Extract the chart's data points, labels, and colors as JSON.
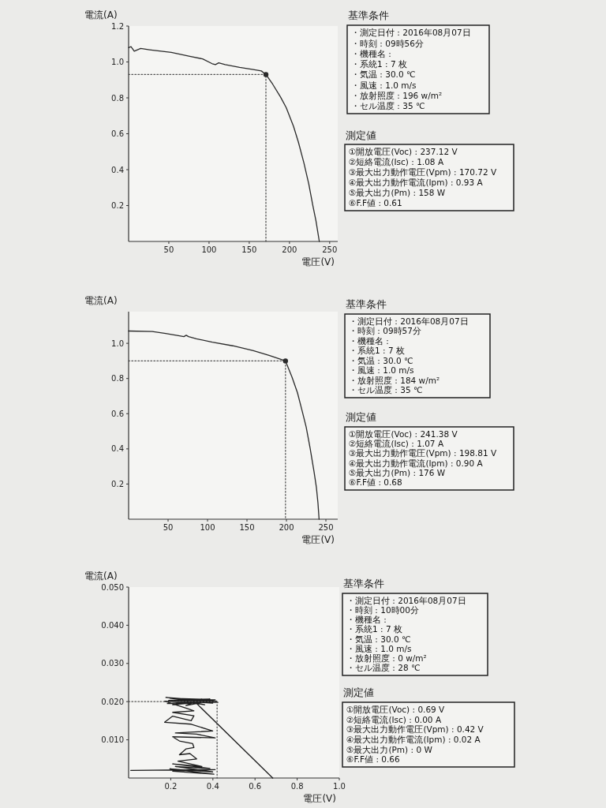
{
  "chart_data": [
    {
      "type": "line",
      "xlabel": "電圧(V)",
      "ylabel": "電流(A)",
      "xlim": [
        0,
        260
      ],
      "ylim": [
        0,
        1.2
      ],
      "xticks": [
        50,
        100,
        150,
        200,
        250
      ],
      "yticks": [
        0.2,
        0.4,
        0.6,
        0.8,
        {
          "value": 1,
          "label": "1.0"
        },
        1.2
      ],
      "series": [
        {
          "color": "#2a2a2a",
          "x": [
            0,
            3,
            7,
            15,
            26,
            53,
            76,
            92,
            104,
            108,
            112,
            120,
            138,
            155,
            165,
            170.72,
            179,
            189,
            196,
            205,
            211,
            218,
            224,
            229,
            233,
            237.12
          ],
          "values": [
            1.08,
            1.085,
            1.06,
            1.075,
            1.068,
            1.053,
            1.031,
            1.017,
            0.99,
            0.985,
            0.995,
            0.985,
            0.97,
            0.958,
            0.95,
            0.93,
            0.877,
            0.804,
            0.745,
            0.642,
            0.555,
            0.437,
            0.32,
            0.202,
            0.114,
            0
          ]
        },
        {
          "color": "#555555",
          "line_style": "dotted",
          "x": [
            0,
            170.72,
            170.72
          ],
          "values": [
            0.93,
            0.93,
            0
          ]
        },
        {
          "type": "scatter",
          "marker": "circle",
          "color": "#2a2a2a",
          "x": [
            170.72
          ],
          "values": [
            0.93
          ]
        }
      ]
    },
    {
      "type": "other",
      "title": "基準条件",
      "annotations": [
        "・測定日付 : 2016年08月07日",
        "・時刻 : 09時56分",
        "・機種名 :",
        "・系統1 : 7 枚",
        "・気温 : 30.0 ℃",
        "・風速 : 1.0 m/s",
        "・放射照度 : 196 w/m²",
        "・セル温度 : 35 ℃"
      ]
    },
    {
      "type": "other",
      "title": "測定値",
      "annotations": [
        "①開放電圧(Voc) : 237.12 V",
        "②短絡電流(Isc) : 1.08 A",
        "③最大出力動作電圧(Vpm) : 170.72 V",
        "④最大出力動作電流(Ipm) : 0.93 A",
        "⑤最大出力(Pm) : 158 W",
        "⑥F.F値 : 0.61"
      ]
    },
    {
      "type": "line",
      "xlabel": "電圧(V)",
      "ylabel": "電流(A)",
      "xlim": [
        0,
        265
      ],
      "ylim": [
        0,
        1.18
      ],
      "xticks": [
        50,
        100,
        150,
        200,
        250
      ],
      "yticks": [
        0.2,
        0.4,
        0.6,
        0.8,
        {
          "value": 1,
          "label": "1.0"
        }
      ],
      "series": [
        {
          "color": "#2a2a2a",
          "x": [
            0,
            30,
            47,
            66,
            70,
            73,
            76,
            86,
            106,
            132,
            158,
            178,
            198.81,
            207,
            214,
            220,
            225,
            230,
            235,
            238,
            240,
            241.38
          ],
          "values": [
            1.07,
            1.067,
            1.056,
            1.041,
            1.038,
            1.046,
            1.038,
            1.026,
            1.007,
            0.986,
            0.959,
            0.932,
            0.9,
            0.809,
            0.719,
            0.614,
            0.524,
            0.404,
            0.27,
            0.18,
            0.09,
            0
          ]
        },
        {
          "color": "#555555",
          "line_style": "dotted",
          "x": [
            0,
            198.81,
            198.81
          ],
          "values": [
            0.9,
            0.9,
            0
          ]
        },
        {
          "type": "scatter",
          "marker": "circle",
          "color": "#2a2a2a",
          "x": [
            198.81
          ],
          "values": [
            0.9
          ]
        }
      ]
    },
    {
      "type": "other",
      "title": "基準条件",
      "annotations": [
        "・測定日付 : 2016年08月07日",
        "・時刻 : 09時57分",
        "・機種名 :",
        "・系統1 : 7 枚",
        "・気温 : 30.0 ℃",
        "・風速 : 1.0 m/s",
        "・放射照度 : 184 w/m²",
        "・セル温度 : 35 ℃"
      ]
    },
    {
      "type": "other",
      "title": "測定値",
      "annotations": [
        "①開放電圧(Voc) : 241.38 V",
        "②短絡電流(Isc) : 1.07 A",
        "③最大出力動作電圧(Vpm) : 198.81 V",
        "④最大出力動作電流(Ipm) : 0.90 A",
        "⑤最大出力(Pm) : 176 W",
        "⑥F.F値 : 0.68"
      ]
    },
    {
      "type": "line",
      "xlabel": "電圧(V)",
      "ylabel": "電流(A)",
      "xlim": [
        0,
        1
      ],
      "ylim": [
        0,
        0.05
      ],
      "xticks": [
        0.2,
        0.4,
        0.6,
        0.8,
        {
          "value": 1,
          "label": "1.0"
        }
      ],
      "yticks": [
        {
          "value": 0.01,
          "label": "0.010"
        },
        {
          "value": 0.02,
          "label": "0.020"
        },
        {
          "value": 0.03,
          "label": "0.030"
        },
        {
          "value": 0.04,
          "label": "0.040"
        },
        {
          "value": 0.05,
          "label": "0.050"
        }
      ],
      "series": [
        {
          "color": "#1e1e1e",
          "x": [
            0.01,
            0.411,
            0.209,
            0.405,
            0.196,
            0.399,
            0.222,
            0.386,
            0.209,
            0.348,
            0.234,
            0.323,
            0.291,
            0.241,
            0.272,
            0.31,
            0.304,
            0.241,
            0.209,
            0.411,
            0.323,
            0.222,
            0.399,
            0.297,
            0.171,
            0.209,
            0.297,
            0.31,
            0.209,
            0.31,
            0.272,
            0.171,
            0.424,
            0.177,
            0.418,
            0.184,
            0.411,
            0.196,
            0.399,
            0.19,
            0.386,
            0.209,
            0.373,
            0.222,
            0.361,
            0.247,
            0.348,
            0.272,
            0.323,
            0.684
          ],
          "values": [
            0.002,
            0.0022,
            0.0018,
            0.001,
            0.0024,
            0.0016,
            0.003,
            0.0025,
            0.0037,
            0.003,
            0.0044,
            0.005,
            0.0064,
            0.0061,
            0.0076,
            0.008,
            0.009,
            0.0097,
            0.0108,
            0.0105,
            0.0115,
            0.0118,
            0.0123,
            0.0141,
            0.0146,
            0.0162,
            0.015,
            0.0163,
            0.0172,
            0.0176,
            0.0183,
            0.0201,
            0.0198,
            0.0211,
            0.0201,
            0.0195,
            0.0205,
            0.0209,
            0.0196,
            0.0203,
            0.0207,
            0.0192,
            0.02,
            0.0208,
            0.0192,
            0.0201,
            0.0207,
            0.019,
            0.0195,
            0
          ]
        },
        {
          "color": "#555555",
          "line_style": "dotted",
          "x": [
            0,
            0.42,
            0.42
          ],
          "values": [
            0.02,
            0.02,
            0
          ]
        }
      ]
    },
    {
      "type": "other",
      "title": "基準条件",
      "annotations": [
        "・測定日付 : 2016年08月07日",
        "・時刻 : 10時00分",
        "・機種名 :",
        "・系統1 : 7 枚",
        "・気温 : 30.0 ℃",
        "・風速 : 1.0 m/s",
        "・放射照度 : 0 w/m²",
        "・セル温度 : 28 ℃"
      ]
    },
    {
      "type": "other",
      "title": "測定値",
      "annotations": [
        "①開放電圧(Voc) : 0.69 V",
        "②短絡電流(Isc) : 0.00 A",
        "③最大出力動作電圧(Vpm) : 0.42 V",
        "④最大出力動作電流(Ipm) : 0.02 A",
        "⑤最大出力(Pm) : 0 W",
        "⑥F.F値 : 0.66"
      ]
    }
  ]
}
